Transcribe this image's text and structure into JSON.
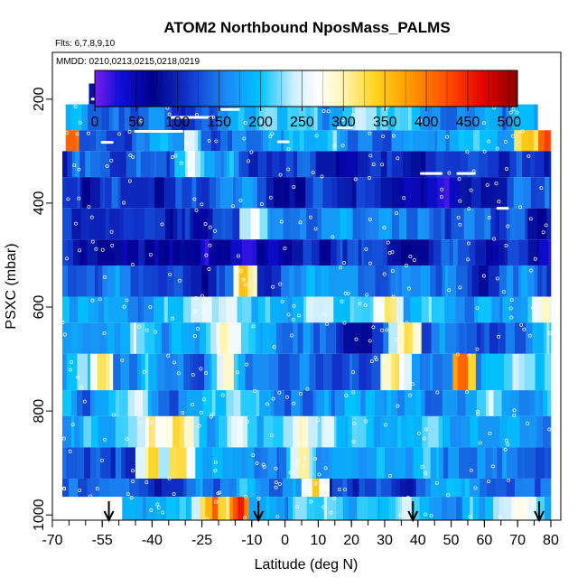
{
  "chart_data": {
    "type": "heatmap",
    "title": "ATOM2 Northbound NposMass_PALMS",
    "flights_note": "Flts: 6,7,8,9,10",
    "dates_note": "MMDD: 0210,0213,0215,0218,0219",
    "xlabel": "Latitude (deg N)",
    "ylabel": "PSXC (mbar)",
    "xlim": [
      -70,
      83
    ],
    "ylim": [
      1010,
      110
    ],
    "x_ticks": [
      {
        "value": -70,
        "label": "-70"
      },
      {
        "value": -55,
        "label": "-55"
      },
      {
        "value": -40,
        "label": "-40"
      },
      {
        "value": -25,
        "label": "-25"
      },
      {
        "value": -10,
        "label": "-10"
      },
      {
        "value": 0,
        "label": "0"
      },
      {
        "value": 10,
        "label": "10"
      },
      {
        "value": 20,
        "label": "20"
      },
      {
        "value": 30,
        "label": "30"
      },
      {
        "value": 40,
        "label": "40"
      },
      {
        "value": 50,
        "label": "50"
      },
      {
        "value": 60,
        "label": "60"
      },
      {
        "value": 70,
        "label": "70"
      },
      {
        "value": 80,
        "label": "80"
      }
    ],
    "x_minor_step": 5,
    "y_ticks": [
      {
        "value": 200,
        "label": "200"
      },
      {
        "value": 400,
        "label": "400"
      },
      {
        "value": 600,
        "label": "600"
      },
      {
        "value": 800,
        "label": "800"
      },
      {
        "value": 1000,
        "label": "1000"
      }
    ],
    "colorbar": {
      "min": 0,
      "max": 510,
      "ticks": [
        {
          "value": 0,
          "label": "0"
        },
        {
          "value": 50,
          "label": "50"
        },
        {
          "value": 100,
          "label": "100"
        },
        {
          "value": 150,
          "label": "150"
        },
        {
          "value": 200,
          "label": "200"
        },
        {
          "value": 250,
          "label": "250"
        },
        {
          "value": 300,
          "label": "300"
        },
        {
          "value": 350,
          "label": "350"
        },
        {
          "value": 400,
          "label": "400"
        },
        {
          "value": 450,
          "label": "450"
        },
        {
          "value": 500,
          "label": "500"
        }
      ],
      "palette": [
        [
          0,
          "#7a1cf0"
        ],
        [
          30,
          "#1010d8"
        ],
        [
          70,
          "#00008a"
        ],
        [
          110,
          "#1030c8"
        ],
        [
          160,
          "#1b8cf5"
        ],
        [
          200,
          "#00c2ff"
        ],
        [
          240,
          "#cfefff"
        ],
        [
          270,
          "#ffffff"
        ],
        [
          300,
          "#fff5b0"
        ],
        [
          340,
          "#ffd21a"
        ],
        [
          380,
          "#ff9900"
        ],
        [
          430,
          "#ff4400"
        ],
        [
          470,
          "#e30000"
        ],
        [
          510,
          "#8a0000"
        ]
      ]
    },
    "pressure_bands": [
      {
        "p_top": 170,
        "p_bot": 210,
        "x_min": -59,
        "x_max": 38,
        "base": 55
      },
      {
        "p_top": 210,
        "p_bot": 260,
        "x_min": -66,
        "x_max": 76,
        "base": 150
      },
      {
        "p_top": 260,
        "p_bot": 300,
        "x_min": -66,
        "x_max": 80,
        "base": 175
      },
      {
        "p_top": 300,
        "p_bot": 350,
        "x_min": -67,
        "x_max": 80,
        "base": 120
      },
      {
        "p_top": 350,
        "p_bot": 410,
        "x_min": -67,
        "x_max": 80,
        "base": 120
      },
      {
        "p_top": 410,
        "p_bot": 470,
        "x_min": -67,
        "x_max": 80,
        "base": 110
      },
      {
        "p_top": 470,
        "p_bot": 520,
        "x_min": -67,
        "x_max": 80,
        "base": 85
      },
      {
        "p_top": 520,
        "p_bot": 580,
        "x_min": -67,
        "x_max": 80,
        "base": 150
      },
      {
        "p_top": 580,
        "p_bot": 630,
        "x_min": -67,
        "x_max": 80,
        "base": 185
      },
      {
        "p_top": 630,
        "p_bot": 690,
        "x_min": -67,
        "x_max": 80,
        "base": 165
      },
      {
        "p_top": 690,
        "p_bot": 760,
        "x_min": -67,
        "x_max": 80,
        "base": 190
      },
      {
        "p_top": 760,
        "p_bot": 810,
        "x_min": -67,
        "x_max": 80,
        "base": 175
      },
      {
        "p_top": 810,
        "p_bot": 870,
        "x_min": -67,
        "x_max": 80,
        "base": 190
      },
      {
        "p_top": 870,
        "p_bot": 930,
        "x_min": -67,
        "x_max": 80,
        "base": 170
      },
      {
        "p_top": 930,
        "p_bot": 965,
        "x_min": -67,
        "x_max": 80,
        "base": 140
      },
      {
        "p_top": 965,
        "p_bot": 1010,
        "x_min": -49,
        "x_max": 80,
        "base": 215
      }
    ],
    "hotspots": [
      {
        "x": -12,
        "p": 550,
        "w": 4,
        "v": 360
      },
      {
        "x": 31,
        "p": 600,
        "w": 5,
        "v": 330
      },
      {
        "x": 37,
        "p": 655,
        "w": 5,
        "v": 360
      },
      {
        "x": 33,
        "p": 720,
        "w": 4,
        "v": 340
      },
      {
        "x": 53,
        "p": 730,
        "w": 4,
        "v": 420
      },
      {
        "x": -55,
        "p": 730,
        "w": 4,
        "v": 340
      },
      {
        "x": -32,
        "p": 880,
        "w": 5,
        "v": 360
      },
      {
        "x": -40,
        "p": 880,
        "w": 4,
        "v": 330
      },
      {
        "x": -21,
        "p": 990,
        "w": 6,
        "v": 400
      },
      {
        "x": -14,
        "p": 990,
        "w": 3,
        "v": 460
      },
      {
        "x": 9,
        "p": 950,
        "w": 4,
        "v": 340
      },
      {
        "x": -64,
        "p": 280,
        "w": 3,
        "v": 440
      },
      {
        "x": 73,
        "p": 280,
        "w": 3,
        "v": 380
      },
      {
        "x": 78,
        "p": 280,
        "w": 2,
        "v": 440
      },
      {
        "x": -18,
        "p": 680,
        "w": 8,
        "v": 300
      },
      {
        "x": -45,
        "p": 660,
        "w": 6,
        "v": 250
      },
      {
        "x": -10,
        "p": 450,
        "w": 4,
        "v": 300
      },
      {
        "x": 5,
        "p": 880,
        "w": 5,
        "v": 320
      },
      {
        "x": -28,
        "p": 300,
        "w": 4,
        "v": 280
      },
      {
        "x": 78,
        "p": 600,
        "w": 5,
        "v": 300
      }
    ],
    "profile_arrows": [
      {
        "x": -53,
        "label": ""
      },
      {
        "x": -8,
        "label": ""
      },
      {
        "x": 38.5,
        "label": ""
      },
      {
        "x": 76.5,
        "label": ""
      }
    ]
  }
}
